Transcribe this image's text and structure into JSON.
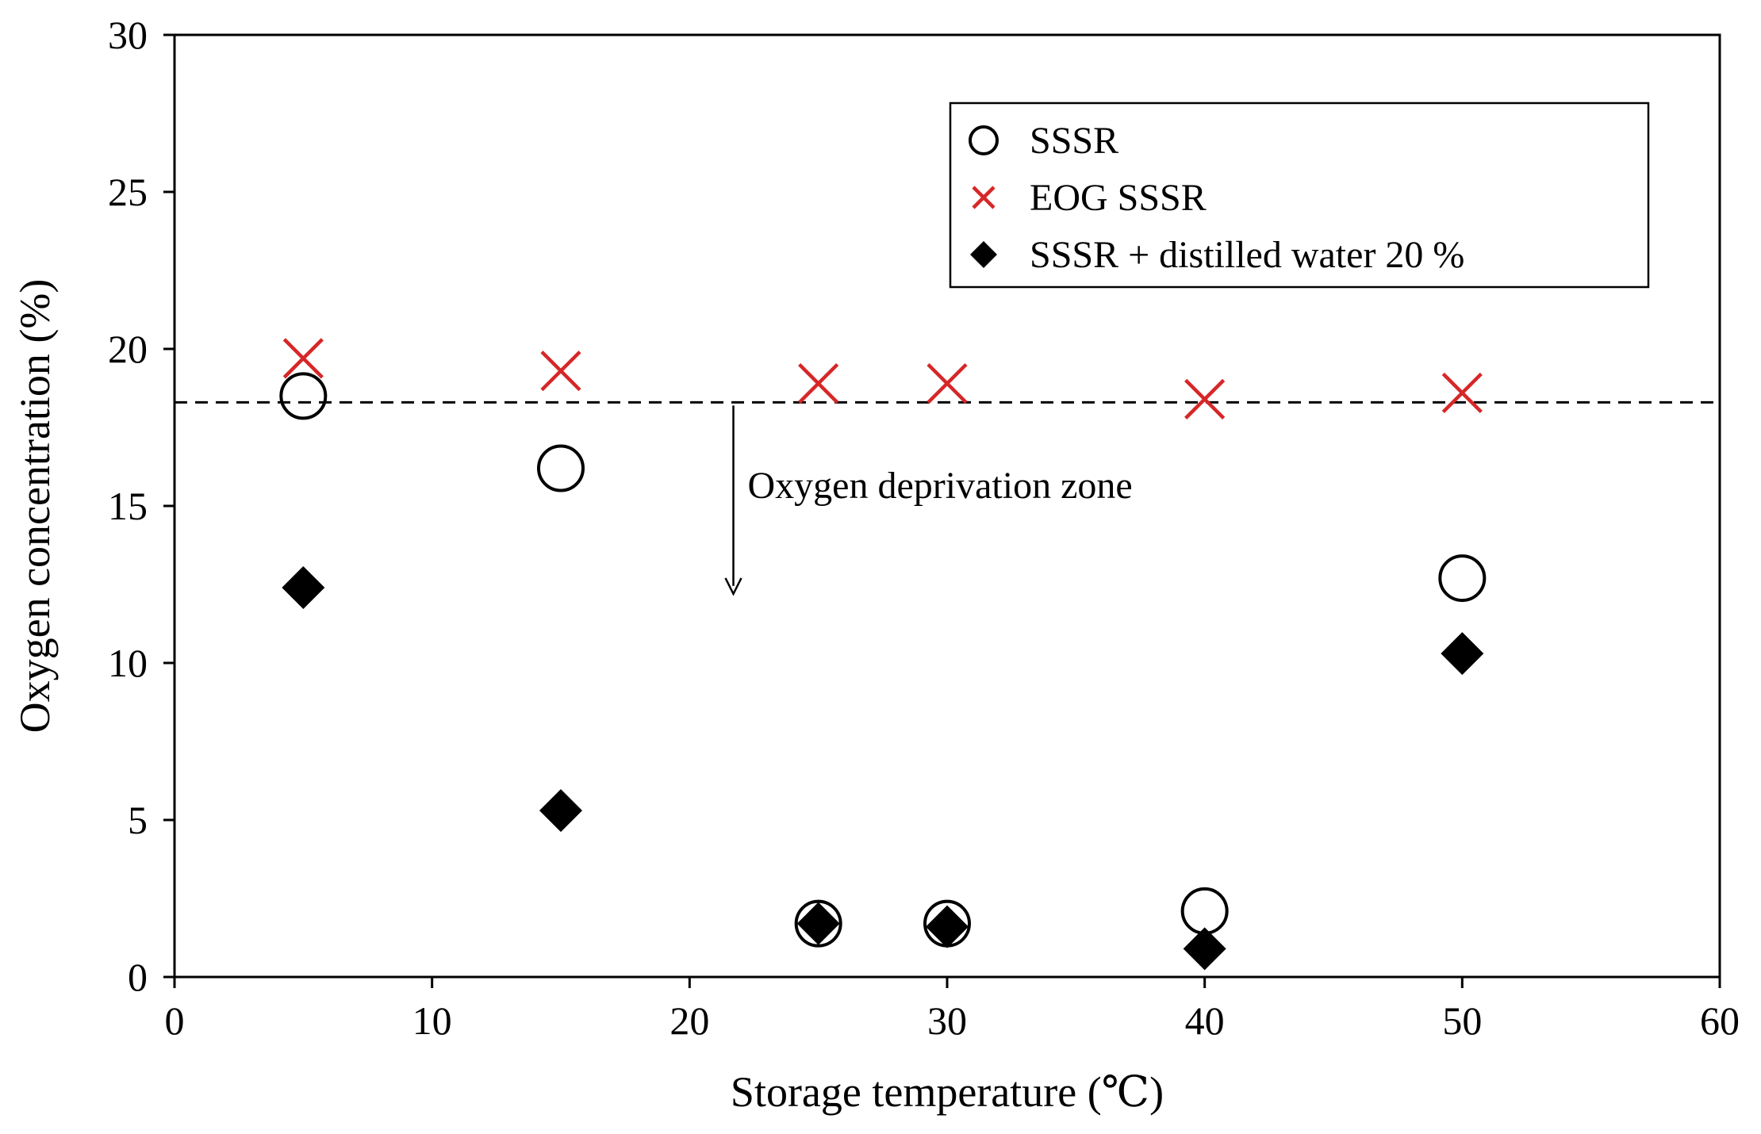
{
  "chart_data": {
    "type": "scatter",
    "xlabel": "Storage temperature (℃)",
    "ylabel": "Oxygen concentration (%)",
    "xlim": [
      0,
      60
    ],
    "ylim": [
      0,
      30
    ],
    "xticks": [
      "0",
      "10",
      "20",
      "30",
      "40",
      "50",
      "60"
    ],
    "yticks": [
      "0",
      "5",
      "10",
      "15",
      "20",
      "25",
      "30"
    ],
    "grid": false,
    "legend_position": "top-right",
    "series": [
      {
        "name": "SSSR",
        "marker": "open-circle",
        "color": "#000000",
        "points": [
          {
            "x": 5,
            "y": 18.5
          },
          {
            "x": 15,
            "y": 16.2
          },
          {
            "x": 25,
            "y": 1.7
          },
          {
            "x": 30,
            "y": 1.7
          },
          {
            "x": 40,
            "y": 2.1
          },
          {
            "x": 50,
            "y": 12.7
          }
        ]
      },
      {
        "name": "EOG SSSR",
        "marker": "x",
        "color": "#d62728",
        "points": [
          {
            "x": 5,
            "y": 19.7
          },
          {
            "x": 15,
            "y": 19.3
          },
          {
            "x": 25,
            "y": 18.9
          },
          {
            "x": 30,
            "y": 18.9
          },
          {
            "x": 40,
            "y": 18.4
          },
          {
            "x": 50,
            "y": 18.6
          }
        ]
      },
      {
        "name": "SSSR + distilled water 20 %",
        "marker": "filled-diamond",
        "color": "#000000",
        "points": [
          {
            "x": 5,
            "y": 12.4
          },
          {
            "x": 15,
            "y": 5.3
          },
          {
            "x": 25,
            "y": 1.7
          },
          {
            "x": 30,
            "y": 1.6
          },
          {
            "x": 40,
            "y": 0.9
          },
          {
            "x": 50,
            "y": 10.3
          }
        ]
      }
    ],
    "reference_line": {
      "y": 18.3,
      "style": "dashed"
    },
    "annotation": {
      "text": "Oxygen deprivation zone",
      "arrow_x": 21.7,
      "arrow_y_from": 18.3,
      "arrow_y_to": 12.2
    }
  }
}
